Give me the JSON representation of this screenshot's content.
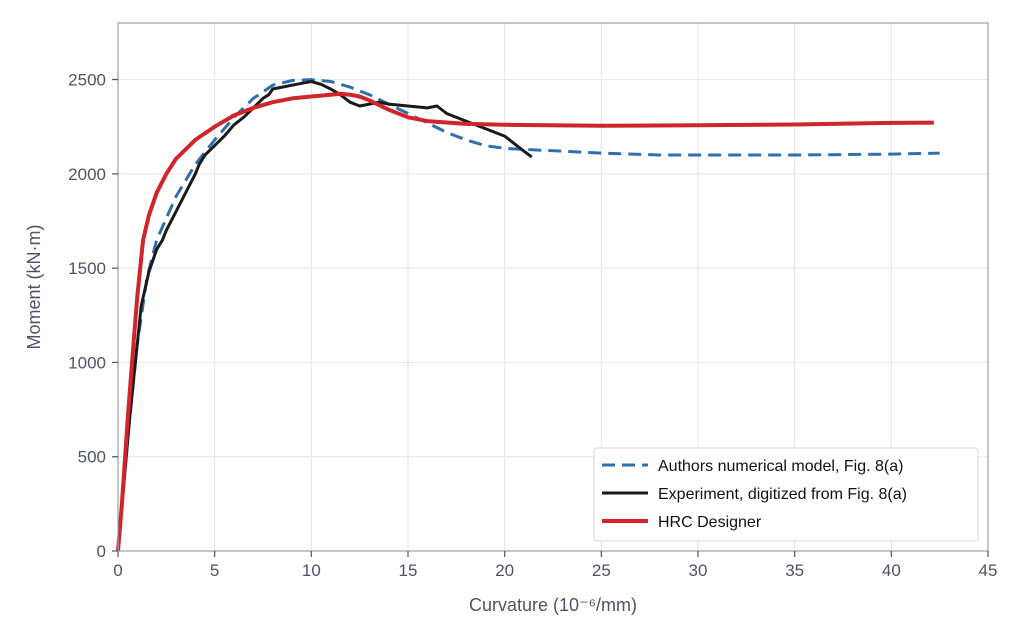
{
  "chart_data": {
    "type": "line",
    "title": "",
    "xlabel": "Curvature (10⁻⁶/mm)",
    "ylabel": "Moment (kN·m)",
    "xlim": [
      0,
      45
    ],
    "ylim": [
      0,
      2800
    ],
    "xticks": [
      0,
      5,
      10,
      15,
      20,
      25,
      30,
      35,
      40,
      45
    ],
    "yticks": [
      0,
      500,
      1000,
      1500,
      2000,
      2500
    ],
    "grid": true,
    "legend_position": "lower-right",
    "series": [
      {
        "name": "Authors numerical model, Fig. 8(a)",
        "color": "#2f6fb0",
        "style": "dashed",
        "x": [
          0,
          0.2,
          0.5,
          1.0,
          1.5,
          2.0,
          3.0,
          4.0,
          5.0,
          6.0,
          7.0,
          8.0,
          9.0,
          10.0,
          11.0,
          12.0,
          13.0,
          14.0,
          15.0,
          16.0,
          17.0,
          18.0,
          19.0,
          20.0,
          22.0,
          25.0,
          28.0,
          30.0,
          35.0,
          40.0,
          42.5
        ],
        "y": [
          0,
          250,
          600,
          1100,
          1450,
          1650,
          1880,
          2050,
          2180,
          2300,
          2400,
          2470,
          2495,
          2500,
          2490,
          2460,
          2420,
          2370,
          2320,
          2270,
          2220,
          2180,
          2150,
          2135,
          2125,
          2110,
          2100,
          2100,
          2100,
          2105,
          2110
        ]
      },
      {
        "name": "Experiment, digitized from Fig. 8(a)",
        "color": "#1a1a1a",
        "style": "solid",
        "x": [
          0,
          0.3,
          0.6,
          0.9,
          1.2,
          1.6,
          2.0,
          2.3,
          2.5,
          3.0,
          3.5,
          4.0,
          4.2,
          4.5,
          5.0,
          5.5,
          6.0,
          6.5,
          7.0,
          7.5,
          7.8,
          8.0,
          8.5,
          9.0,
          9.5,
          10.0,
          10.5,
          11.0,
          11.5,
          12.0,
          12.5,
          13.0,
          13.5,
          14.0,
          15.0,
          16.0,
          16.5,
          17.0,
          18.0,
          19.0,
          20.0,
          20.5,
          21.0,
          21.4
        ],
        "y": [
          0,
          350,
          700,
          1000,
          1300,
          1480,
          1600,
          1650,
          1700,
          1800,
          1900,
          2000,
          2050,
          2100,
          2150,
          2200,
          2260,
          2300,
          2350,
          2400,
          2420,
          2450,
          2460,
          2470,
          2480,
          2490,
          2475,
          2450,
          2420,
          2380,
          2360,
          2370,
          2380,
          2370,
          2360,
          2350,
          2360,
          2320,
          2280,
          2240,
          2200,
          2160,
          2120,
          2090
        ]
      },
      {
        "name": "HRC Designer",
        "color": "#d0252b",
        "style": "solid",
        "x": [
          0,
          0.2,
          0.5,
          0.8,
          1.0,
          1.3,
          1.6,
          2.0,
          2.5,
          3.0,
          4.0,
          5.0,
          6.0,
          7.0,
          8.0,
          9.0,
          10.0,
          11.0,
          11.5,
          12.0,
          12.5,
          13.0,
          14.0,
          15.0,
          16.0,
          18.0,
          20.0,
          25.0,
          30.0,
          35.0,
          40.0,
          42.2
        ],
        "y": [
          0,
          250,
          700,
          1100,
          1350,
          1650,
          1780,
          1900,
          2000,
          2080,
          2180,
          2250,
          2310,
          2350,
          2380,
          2400,
          2410,
          2420,
          2425,
          2420,
          2410,
          2390,
          2340,
          2300,
          2280,
          2265,
          2260,
          2255,
          2258,
          2262,
          2270,
          2272
        ]
      }
    ]
  }
}
